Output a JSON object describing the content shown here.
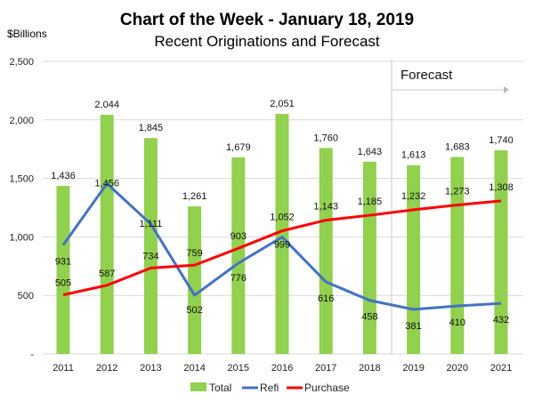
{
  "chart_data": {
    "type": "bar",
    "title": "Chart of the Week - January 18, 2019",
    "subtitle": "Recent Originations and Forecast",
    "ylabel": "$Billions",
    "xlabel": "",
    "ylim": [
      0,
      2500
    ],
    "yticks": [
      0,
      500,
      1000,
      1500,
      2000,
      2500
    ],
    "ytick_labels": [
      "-",
      "500",
      "1,000",
      "1,500",
      "2,000",
      "2,500"
    ],
    "grid": true,
    "legend_position": "bottom",
    "categories": [
      "2011",
      "2012",
      "2013",
      "2014",
      "2015",
      "2016",
      "2017",
      "2018",
      "2019",
      "2020",
      "2021"
    ],
    "series": [
      {
        "name": "Total",
        "kind": "bar",
        "color": "#92d050",
        "values": [
          1436,
          2044,
          1845,
          1261,
          1679,
          2051,
          1760,
          1643,
          1613,
          1683,
          1740
        ],
        "labels": [
          "1,436",
          "2,044",
          "1,845",
          "1,261",
          "1,679",
          "2,051",
          "1,760",
          "1,643",
          "1,613",
          "1,683",
          "1,740"
        ]
      },
      {
        "name": "Refi",
        "kind": "line",
        "color": "#4472c4",
        "values": [
          931,
          1456,
          1111,
          502,
          776,
          999,
          616,
          458,
          381,
          410,
          432
        ],
        "labels": [
          "931",
          "1,456",
          "1,111",
          "502",
          "776",
          "999",
          "616",
          "458",
          "381",
          "410",
          "432"
        ]
      },
      {
        "name": "Purchase",
        "kind": "line",
        "color": "#ff0000",
        "values": [
          505,
          587,
          734,
          759,
          903,
          1052,
          1143,
          1185,
          1232,
          1273,
          1308
        ],
        "labels": [
          "505",
          "587",
          "734",
          "759",
          "903",
          "1,052",
          "1,143",
          "1,185",
          "1,232",
          "1,273",
          "1,308"
        ]
      }
    ],
    "annotations": [
      {
        "text": "Forecast",
        "starts_after": "2018",
        "arrow": "right"
      }
    ]
  }
}
